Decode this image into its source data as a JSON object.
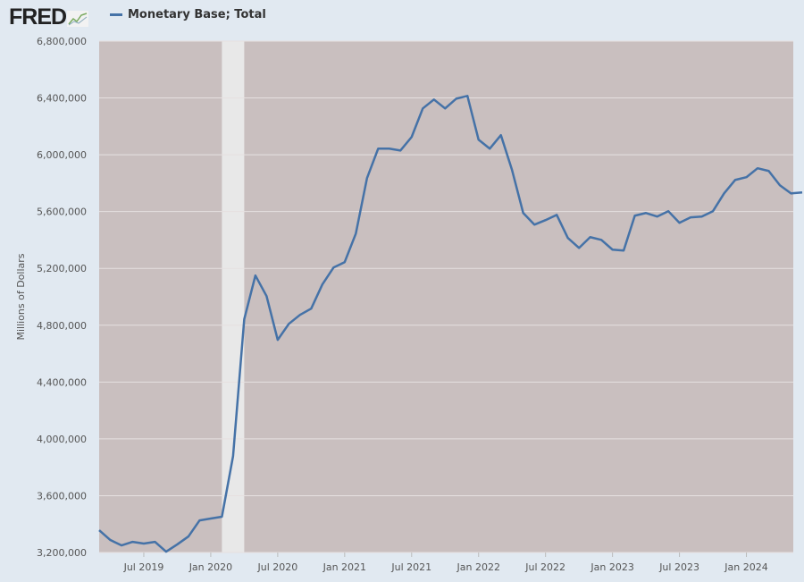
{
  "header": {
    "logo_text": "FRED",
    "legend_label": "Monetary Base; Total"
  },
  "colors": {
    "line": "#4572a7",
    "plot_bg": "#c9bfbf",
    "recession": "#e8e8e8",
    "grid": "#e6e0e0"
  },
  "chart_data": {
    "type": "line",
    "title": "",
    "xlabel": "",
    "ylabel": "Millions of Dollars",
    "ylim": [
      3200000,
      6800000
    ],
    "yticks": [
      3200000,
      3600000,
      4000000,
      4400000,
      4800000,
      5200000,
      5600000,
      6000000,
      6400000,
      6800000
    ],
    "ytick_labels": [
      "3,200,000",
      "3,600,000",
      "4,000,000",
      "4,400,000",
      "4,800,000",
      "5,200,000",
      "5,600,000",
      "6,000,000",
      "6,400,000",
      "6,800,000"
    ],
    "x_start": "Mar 2019",
    "x_unit": "month index from Mar 2019",
    "xlim": [
      0,
      62.2
    ],
    "xticks": [
      {
        "i": 4,
        "label": "Jul 2019"
      },
      {
        "i": 10,
        "label": "Jan 2020"
      },
      {
        "i": 16,
        "label": "Jul 2020"
      },
      {
        "i": 22,
        "label": "Jan 2021"
      },
      {
        "i": 28,
        "label": "Jul 2021"
      },
      {
        "i": 34,
        "label": "Jan 2022"
      },
      {
        "i": 40,
        "label": "Jul 2022"
      },
      {
        "i": 46,
        "label": "Jan 2023"
      },
      {
        "i": 52,
        "label": "Jul 2023"
      },
      {
        "i": 58,
        "label": "Jan 2024"
      }
    ],
    "recession": [
      11,
      13
    ],
    "grid": true,
    "legend": "top-left",
    "series": [
      {
        "name": "Monetary Base; Total",
        "values": [
          3357000,
          3288000,
          3250000,
          3275000,
          3263000,
          3275000,
          3206000,
          3257000,
          3313000,
          3426000,
          3439000,
          3452000,
          3879000,
          4842000,
          5150000,
          5005000,
          4697000,
          4810000,
          4873000,
          4917000,
          5087000,
          5206000,
          5244000,
          5445000,
          5835000,
          6043000,
          6043000,
          6030000,
          6125000,
          6326000,
          6389000,
          6326000,
          6395000,
          6414000,
          6106000,
          6043000,
          6138000,
          5892000,
          5590000,
          5508000,
          5540000,
          5577000,
          5414000,
          5344000,
          5420000,
          5401000,
          5332000,
          5326000,
          5571000,
          5590000,
          5565000,
          5603000,
          5521000,
          5559000,
          5565000,
          5603000,
          5728000,
          5823000,
          5842000,
          5905000,
          5886000,
          5785000,
          5728000,
          5735000
        ]
      }
    ]
  }
}
